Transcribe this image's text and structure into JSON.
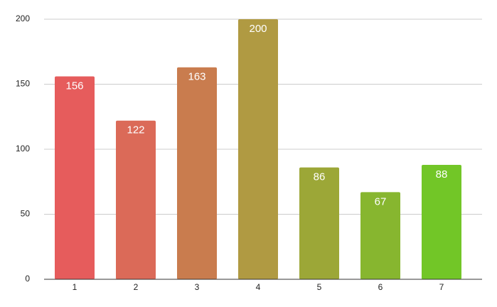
{
  "chart_data": {
    "type": "bar",
    "categories": [
      "1",
      "2",
      "3",
      "4",
      "5",
      "6",
      "7"
    ],
    "values": [
      156,
      122,
      163,
      200,
      86,
      67,
      88
    ],
    "colors": [
      "#e65c5c",
      "#db6a58",
      "#c97c4e",
      "#b09a42",
      "#9ca737",
      "#87b62f",
      "#72c627"
    ],
    "ylim": [
      0,
      200
    ],
    "yticks": [
      0,
      50,
      100,
      150,
      200
    ],
    "grid": true,
    "data_labels": true
  }
}
